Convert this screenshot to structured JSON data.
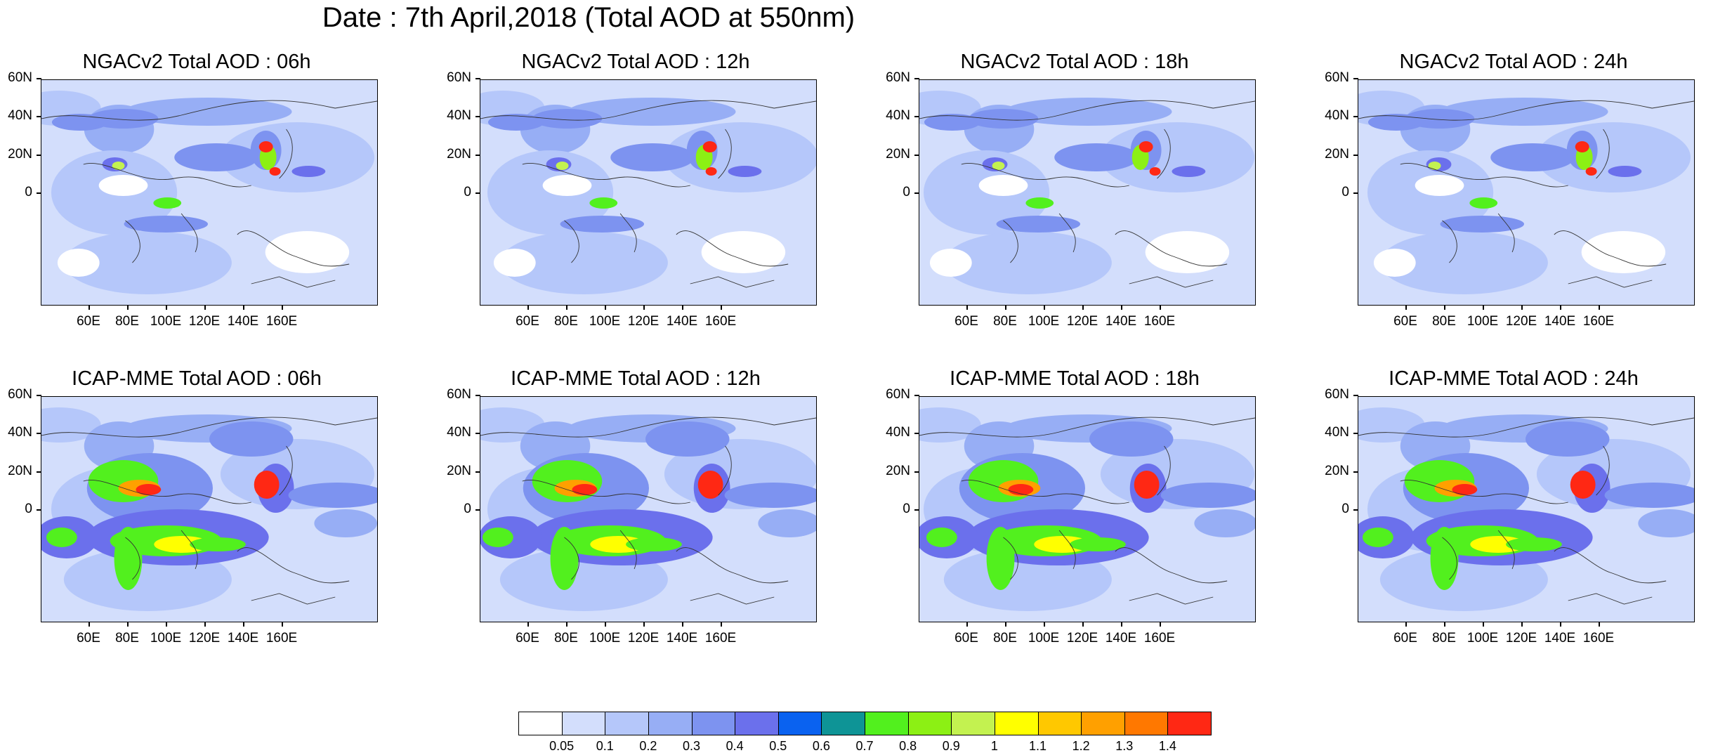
{
  "title": "Date : 7th April,2018 (Total AOD at 550nm)",
  "panels": [
    {
      "title": "NGACv2 Total AOD : 06h",
      "model": "NGACv2",
      "hour": "06h"
    },
    {
      "title": "NGACv2 Total AOD : 12h",
      "model": "NGACv2",
      "hour": "12h"
    },
    {
      "title": "NGACv2 Total AOD : 18h",
      "model": "NGACv2",
      "hour": "18h"
    },
    {
      "title": "NGACv2 Total AOD : 24h",
      "model": "NGACv2",
      "hour": "24h"
    },
    {
      "title": "ICAP-MME Total AOD : 06h",
      "model": "ICAP-MME",
      "hour": "06h"
    },
    {
      "title": "ICAP-MME Total AOD : 12h",
      "model": "ICAP-MME",
      "hour": "12h"
    },
    {
      "title": "ICAP-MME Total AOD : 18h",
      "model": "ICAP-MME",
      "hour": "18h"
    },
    {
      "title": "ICAP-MME Total AOD : 24h",
      "model": "ICAP-MME",
      "hour": "24h"
    }
  ],
  "lat_labels": [
    "60N",
    "40N",
    "20N",
    "0"
  ],
  "lon_labels": [
    "60E",
    "80E",
    "100E",
    "120E",
    "140E",
    "160E"
  ],
  "colorbar": {
    "labels": [
      "0.05",
      "0.1",
      "0.2",
      "0.3",
      "0.4",
      "0.5",
      "0.6",
      "0.7",
      "0.8",
      "0.9",
      "1",
      "1.1",
      "1.2",
      "1.3",
      "1.4"
    ],
    "colors": [
      "#ffffff",
      "#d3defc",
      "#b5c7fa",
      "#97aef5",
      "#7d93f0",
      "#6b70ec",
      "#0a62f0",
      "#0e9496",
      "#52f01e",
      "#8cf014",
      "#c3f250",
      "#ffff00",
      "#ffc800",
      "#ffa000",
      "#ff7800",
      "#ff2814"
    ]
  }
}
